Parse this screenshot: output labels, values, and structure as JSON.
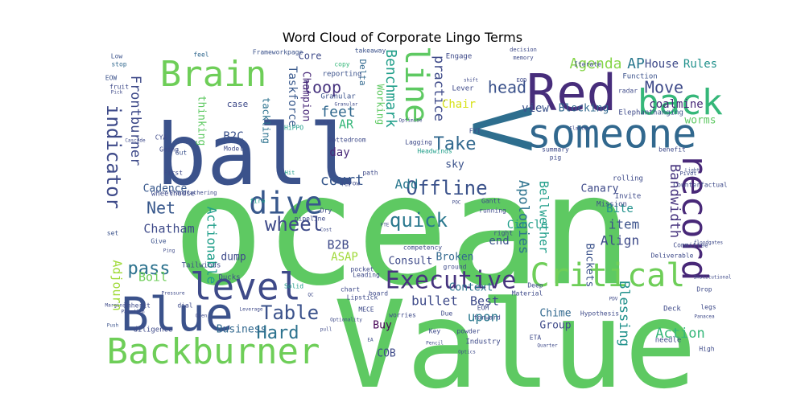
{
  "chart_data": {
    "type": "wordcloud",
    "title": "Word Cloud of Corporate Lingo Terms",
    "background": "#ffffff",
    "colormap": "viridis",
    "words": [
      {
        "text": "ocean",
        "size": 190,
        "color": "#5ec962"
      },
      {
        "text": "Value",
        "size": 150,
        "color": "#5ec962"
      },
      {
        "text": "ball",
        "size": 105,
        "color": "#3b528b"
      },
      {
        "text": "V",
        "size": 100,
        "color": "#2e6e8e"
      },
      {
        "text": "Red",
        "size": 62,
        "color": "#472d7b"
      },
      {
        "text": "someone",
        "size": 50,
        "color": "#31688e"
      },
      {
        "text": "back",
        "size": 44,
        "color": "#35b779"
      },
      {
        "text": "Brain",
        "size": 44,
        "color": "#6ece58"
      },
      {
        "text": "Blue",
        "size": 58,
        "color": "#3b528b"
      },
      {
        "text": "Backburner",
        "size": 44,
        "color": "#6ece58"
      },
      {
        "text": "level",
        "size": 46,
        "color": "#3e4a89"
      },
      {
        "text": "record",
        "size": 44,
        "color": "#482878"
      },
      {
        "text": "Critical",
        "size": 40,
        "color": "#6ece58"
      },
      {
        "text": "dive",
        "size": 38,
        "color": "#38588c"
      },
      {
        "text": "line",
        "size": 40,
        "color": "#5ec962"
      },
      {
        "text": "Executive",
        "size": 30,
        "color": "#46337e"
      },
      {
        "text": "quick",
        "size": 24,
        "color": "#2a788e"
      },
      {
        "text": "wheel",
        "size": 24,
        "color": "#3e4a89"
      },
      {
        "text": "Table",
        "size": 24,
        "color": "#3b528b"
      },
      {
        "text": "Hard",
        "size": 22,
        "color": "#2c728e"
      },
      {
        "text": "Offline",
        "size": 24,
        "color": "#3b528b"
      },
      {
        "text": "indicator",
        "size": 24,
        "color": "#3e4a89"
      },
      {
        "text": "Take",
        "size": 22,
        "color": "#31688e"
      },
      {
        "text": "pass",
        "size": 22,
        "color": "#2c728e"
      },
      {
        "text": "Net",
        "size": 20,
        "color": "#38588c"
      },
      {
        "text": "loop",
        "size": 20,
        "color": "#46337e"
      },
      {
        "text": "head",
        "size": 20,
        "color": "#3b528b"
      },
      {
        "text": "Move",
        "size": 20,
        "color": "#3e4a89"
      },
      {
        "text": "Agenda",
        "size": 18,
        "color": "#86d549"
      },
      {
        "text": "AP",
        "size": 18,
        "color": "#2a788e"
      },
      {
        "text": "Benchmark",
        "size": 18,
        "color": "#1f9e89"
      },
      {
        "text": "practice",
        "size": 17,
        "color": "#3e4a89"
      },
      {
        "text": "feet",
        "size": 18,
        "color": "#31688e"
      },
      {
        "text": "court",
        "size": 18,
        "color": "#38588c"
      },
      {
        "text": "Frontburner",
        "size": 17,
        "color": "#3e4a89"
      },
      {
        "text": "Bandwidth",
        "size": 17,
        "color": "#46337e"
      },
      {
        "text": "Apologies",
        "size": 17,
        "color": "#2c728e"
      },
      {
        "text": "Bellwether",
        "size": 15,
        "color": "#1f9e89"
      },
      {
        "text": "Blessing",
        "size": 17,
        "color": "#21918c"
      },
      {
        "text": "Action",
        "size": 17,
        "color": "#35b779"
      },
      {
        "text": "Adjourn",
        "size": 15,
        "color": "#a0da39"
      },
      {
        "text": "Actionable",
        "size": 16,
        "color": "#1f9e89"
      },
      {
        "text": "Chatham",
        "size": 15,
        "color": "#3e4a89"
      },
      {
        "text": "Taskforce",
        "size": 14,
        "color": "#38588c"
      },
      {
        "text": "Champion",
        "size": 13,
        "color": "#482878"
      },
      {
        "text": "Chair",
        "size": 14,
        "color": "#d8e219"
      },
      {
        "text": "Working",
        "size": 12,
        "color": "#5ec962"
      },
      {
        "text": "Rules",
        "size": 14,
        "color": "#21918c"
      },
      {
        "text": "House",
        "size": 14,
        "color": "#3e4a89"
      },
      {
        "text": "coalmine",
        "size": 14,
        "color": "#482878"
      },
      {
        "text": "Blocking",
        "size": 13,
        "color": "#31688e"
      },
      {
        "text": "view",
        "size": 14,
        "color": "#3b528b"
      },
      {
        "text": "worms",
        "size": 13,
        "color": "#5ec962"
      },
      {
        "text": "Add",
        "size": 16,
        "color": "#2a788e"
      },
      {
        "text": "day",
        "size": 14,
        "color": "#482878"
      },
      {
        "text": "sky",
        "size": 13,
        "color": "#3b528b"
      },
      {
        "text": "B2B",
        "size": 15,
        "color": "#3e4a89"
      },
      {
        "text": "B2C",
        "size": 14,
        "color": "#3b528b"
      },
      {
        "text": "AR",
        "size": 15,
        "color": "#35b779"
      },
      {
        "text": "Canary",
        "size": 13,
        "color": "#3e4a89"
      },
      {
        "text": "Bite",
        "size": 14,
        "color": "#21918c"
      },
      {
        "text": "item",
        "size": 16,
        "color": "#3b528b"
      },
      {
        "text": "Align",
        "size": 16,
        "color": "#3e4a89"
      },
      {
        "text": "Circle",
        "size": 14,
        "color": "#1f9e89"
      },
      {
        "text": "end",
        "size": 14,
        "color": "#3b528b"
      },
      {
        "text": "ASAP",
        "size": 14,
        "color": "#a0da39"
      },
      {
        "text": "Consult",
        "size": 13,
        "color": "#3e4a89"
      },
      {
        "text": "Broken",
        "size": 13,
        "color": "#31688e"
      },
      {
        "text": "Best",
        "size": 15,
        "color": "#3e4a89"
      },
      {
        "text": "upon",
        "size": 16,
        "color": "#2a788e"
      },
      {
        "text": "bullet",
        "size": 16,
        "color": "#3e4a89"
      },
      {
        "text": "Context",
        "size": 13,
        "color": "#2c728e"
      },
      {
        "text": "Buy",
        "size": 13,
        "color": "#440154"
      },
      {
        "text": "COB",
        "size": 13,
        "color": "#3e4a89"
      },
      {
        "text": "Business",
        "size": 13,
        "color": "#31688e"
      },
      {
        "text": "Boil",
        "size": 15,
        "color": "#6ece58"
      },
      {
        "text": "dump",
        "size": 13,
        "color": "#3e4a89"
      },
      {
        "text": "Cadence",
        "size": 13,
        "color": "#38588c"
      },
      {
        "text": "Group",
        "size": 13,
        "color": "#3e4a89"
      },
      {
        "text": "Chime",
        "size": 13,
        "color": "#31688e"
      },
      {
        "text": "Buckets",
        "size": 13,
        "color": "#3b528b"
      },
      {
        "text": "thinking",
        "size": 13,
        "color": "#5ec962"
      },
      {
        "text": "tackling",
        "size": 12,
        "color": "#2c728e"
      },
      {
        "text": "case",
        "size": 11,
        "color": "#3e4a89"
      },
      {
        "text": "Core",
        "size": 12,
        "color": "#3e4a89"
      },
      {
        "text": "Delta",
        "size": 11,
        "color": "#31688e"
      },
      {
        "text": "reporting",
        "size": 9,
        "color": "#3b528b"
      },
      {
        "text": "Granular",
        "size": 9,
        "color": "#3b528b"
      },
      {
        "text": "copy",
        "size": 8,
        "color": "#35b779"
      },
      {
        "text": "takeaway",
        "size": 8,
        "color": "#3b528b"
      },
      {
        "text": "Engage",
        "size": 9,
        "color": "#3e4a89"
      },
      {
        "text": "Lever",
        "size": 9,
        "color": "#3e4a89"
      },
      {
        "text": "Function",
        "size": 9,
        "color": "#3b528b"
      },
      {
        "text": "hanging",
        "size": 9,
        "color": "#3b528b"
      },
      {
        "text": "Elephant",
        "size": 9,
        "color": "#3e4a89"
      },
      {
        "text": "Frameworkpage",
        "size": 8,
        "color": "#3b528b"
      },
      {
        "text": "feel",
        "size": 8,
        "color": "#31688e"
      },
      {
        "text": "Low",
        "size": 8,
        "color": "#3b528b"
      },
      {
        "text": "stop",
        "size": 8,
        "color": "#31688e"
      },
      {
        "text": "EOW",
        "size": 8,
        "color": "#3b528b"
      },
      {
        "text": "fruit",
        "size": 8,
        "color": "#3e4a89"
      },
      {
        "text": "CYA",
        "size": 8,
        "color": "#3e4a89"
      },
      {
        "text": "Going",
        "size": 8,
        "color": "#3e4a89"
      },
      {
        "text": "Gut",
        "size": 8,
        "color": "#3b528b"
      },
      {
        "text": "Model",
        "size": 8,
        "color": "#3e4a89"
      },
      {
        "text": "First",
        "size": 8,
        "color": "#3e4a89"
      },
      {
        "text": "wheelhouse",
        "size": 9,
        "color": "#3e4a89"
      },
      {
        "text": "Give",
        "size": 8,
        "color": "#3b528b"
      },
      {
        "text": "set",
        "size": 8,
        "color": "#3b528b"
      },
      {
        "text": "Tailwinds",
        "size": 9,
        "color": "#3e4a89"
      },
      {
        "text": "Ducks",
        "size": 9,
        "color": "#3e4a89"
      },
      {
        "text": "Inherit",
        "size": 8,
        "color": "#3e4a89"
      },
      {
        "text": "dial",
        "size": 8,
        "color": "#3e4a89"
      },
      {
        "text": "diligence",
        "size": 9,
        "color": "#3e4a89"
      },
      {
        "text": "Push",
        "size": 6,
        "color": "#3b528b"
      },
      {
        "text": "Solid",
        "size": 8,
        "color": "#1f9e89"
      },
      {
        "text": "pipeline",
        "size": 8,
        "color": "#3e4a89"
      },
      {
        "text": "fire",
        "size": 8,
        "color": "#1f9e89"
      },
      {
        "text": "Dry",
        "size": 8,
        "color": "#3e4a89"
      },
      {
        "text": "room",
        "size": 8,
        "color": "#3e4a89"
      },
      {
        "text": "Dotted",
        "size": 8,
        "color": "#3e4a89"
      },
      {
        "text": "HiPPO",
        "size": 8,
        "color": "#1f9e89"
      },
      {
        "text": "OOO",
        "size": 8,
        "color": "#3e4a89"
      },
      {
        "text": "Hit",
        "size": 7,
        "color": "#1f9e89"
      },
      {
        "text": "row",
        "size": 8,
        "color": "#3e4a89"
      },
      {
        "text": "Put",
        "size": 6,
        "color": "#3e4a89"
      },
      {
        "text": "path",
        "size": 8,
        "color": "#3e4a89"
      },
      {
        "text": "Headwinds",
        "size": 8,
        "color": "#1f9e89"
      },
      {
        "text": "Lagging",
        "size": 8,
        "color": "#3e4a89"
      },
      {
        "text": "FYI",
        "size": 8,
        "color": "#3e4a89"
      },
      {
        "text": "Optimise",
        "size": 6,
        "color": "#3e4a89"
      },
      {
        "text": "summary",
        "size": 8,
        "color": "#3e4a89"
      },
      {
        "text": "pig",
        "size": 8,
        "color": "#3e4a89"
      },
      {
        "text": "benefit",
        "size": 8,
        "color": "#3e4a89"
      },
      {
        "text": "Pivot",
        "size": 7,
        "color": "#3e4a89"
      },
      {
        "text": "rolling",
        "size": 9,
        "color": "#3e4a89"
      },
      {
        "text": "Invite",
        "size": 9,
        "color": "#3e4a89"
      },
      {
        "text": "Mission",
        "size": 9,
        "color": "#3e4a89"
      },
      {
        "text": "Gantt",
        "size": 8,
        "color": "#3e4a89"
      },
      {
        "text": "running",
        "size": 8,
        "color": "#3e4a89"
      },
      {
        "text": "competency",
        "size": 8,
        "color": "#3e4a89"
      },
      {
        "text": "right",
        "size": 8,
        "color": "#3e4a89"
      },
      {
        "text": "ground",
        "size": 8,
        "color": "#3e4a89"
      },
      {
        "text": "Deliverable",
        "size": 8,
        "color": "#3e4a89"
      },
      {
        "text": "floodgates",
        "size": 6,
        "color": "#3e4a89"
      },
      {
        "text": "board",
        "size": 8,
        "color": "#3e4a89"
      },
      {
        "text": "pocket",
        "size": 8,
        "color": "#3e4a89"
      },
      {
        "text": "chart",
        "size": 8,
        "color": "#3e4a89"
      },
      {
        "text": "Leading",
        "size": 8,
        "color": "#3e4a89"
      },
      {
        "text": "MECE",
        "size": 8,
        "color": "#3e4a89"
      },
      {
        "text": "Lipstick",
        "size": 8,
        "color": "#3e4a89"
      },
      {
        "text": "worries",
        "size": 8,
        "color": "#3e4a89"
      },
      {
        "text": "Due",
        "size": 8,
        "color": "#3e4a89"
      },
      {
        "text": "EOM",
        "size": 8,
        "color": "#3e4a89"
      },
      {
        "text": "Material",
        "size": 8,
        "color": "#3e4a89"
      },
      {
        "text": "Deep",
        "size": 8,
        "color": "#3e4a89"
      },
      {
        "text": "Key",
        "size": 8,
        "color": "#3e4a89"
      },
      {
        "text": "powder",
        "size": 8,
        "color": "#3e4a89"
      },
      {
        "text": "Industry",
        "size": 9,
        "color": "#3e4a89"
      },
      {
        "text": "Optics",
        "size": 6,
        "color": "#3e4a89"
      },
      {
        "text": "ETA",
        "size": 8,
        "color": "#3e4a89"
      },
      {
        "text": "Deck",
        "size": 9,
        "color": "#3e4a89"
      },
      {
        "text": "needle",
        "size": 9,
        "color": "#3e4a89"
      },
      {
        "text": "Panacea",
        "size": 6,
        "color": "#3e4a89"
      },
      {
        "text": "High",
        "size": 8,
        "color": "#3e4a89"
      },
      {
        "text": "Drop",
        "size": 8,
        "color": "#3e4a89"
      },
      {
        "text": "legs",
        "size": 8,
        "color": "#3e4a89"
      },
      {
        "text": "forward",
        "size": 8,
        "color": "#3e4a89"
      },
      {
        "text": "Hypothesis",
        "size": 8,
        "color": "#3e4a89"
      },
      {
        "text": "Committee",
        "size": 8,
        "color": "#3e4a89"
      },
      {
        "text": "Counterfactual",
        "size": 8,
        "color": "#3e4a89"
      },
      {
        "text": "Grandfathering",
        "size": 7,
        "color": "#3e4a89"
      },
      {
        "text": "Iterate",
        "size": 8,
        "color": "#3e4a89"
      },
      {
        "text": "radar",
        "size": 8,
        "color": "#3e4a89"
      },
      {
        "text": "EOD",
        "size": 7,
        "color": "#3e4a89"
      },
      {
        "text": "memory",
        "size": 7,
        "color": "#3e4a89"
      },
      {
        "text": "decision",
        "size": 7,
        "color": "#3e4a89"
      },
      {
        "text": "shift",
        "size": 6,
        "color": "#3e4a89"
      },
      {
        "text": "Pick",
        "size": 6,
        "color": "#3e4a89"
      },
      {
        "text": "Ping",
        "size": 6,
        "color": "#3e4a89"
      },
      {
        "text": "QC",
        "size": 6,
        "color": "#3e4a89"
      },
      {
        "text": "EA",
        "size": 6,
        "color": "#3e4a89"
      },
      {
        "text": "FTE",
        "size": 6,
        "color": "#3e4a89"
      },
      {
        "text": "Pencil",
        "size": 6,
        "color": "#3e4a89"
      },
      {
        "text": "Quarter",
        "size": 6,
        "color": "#3e4a89"
      },
      {
        "text": "Institutional",
        "size": 6,
        "color": "#3e4a89"
      },
      {
        "text": "Paradigm",
        "size": 6,
        "color": "#3e4a89"
      },
      {
        "text": "Optionality",
        "size": 6,
        "color": "#3e4a89"
      },
      {
        "text": "Marginal",
        "size": 6,
        "color": "#3e4a89"
      },
      {
        "text": "Leverage",
        "size": 6,
        "color": "#3e4a89"
      },
      {
        "text": "Open",
        "size": 6,
        "color": "#3e4a89"
      },
      {
        "text": "Pressure",
        "size": 6,
        "color": "#3e4a89"
      },
      {
        "text": "Granular",
        "size": 6,
        "color": "#3e4a89"
      },
      {
        "text": "Light",
        "size": 6,
        "color": "#3e4a89"
      },
      {
        "text": "pull",
        "size": 6,
        "color": "#3e4a89"
      },
      {
        "text": "POC",
        "size": 6,
        "color": "#3e4a89"
      },
      {
        "text": "Cost",
        "size": 6,
        "color": "#3e4a89"
      },
      {
        "text": "Cascade",
        "size": 6,
        "color": "#3e4a89"
      },
      {
        "text": "Flatten",
        "size": 6,
        "color": "#3e4a89"
      },
      {
        "text": "PDV",
        "size": 6,
        "color": "#3e4a89"
      }
    ]
  }
}
